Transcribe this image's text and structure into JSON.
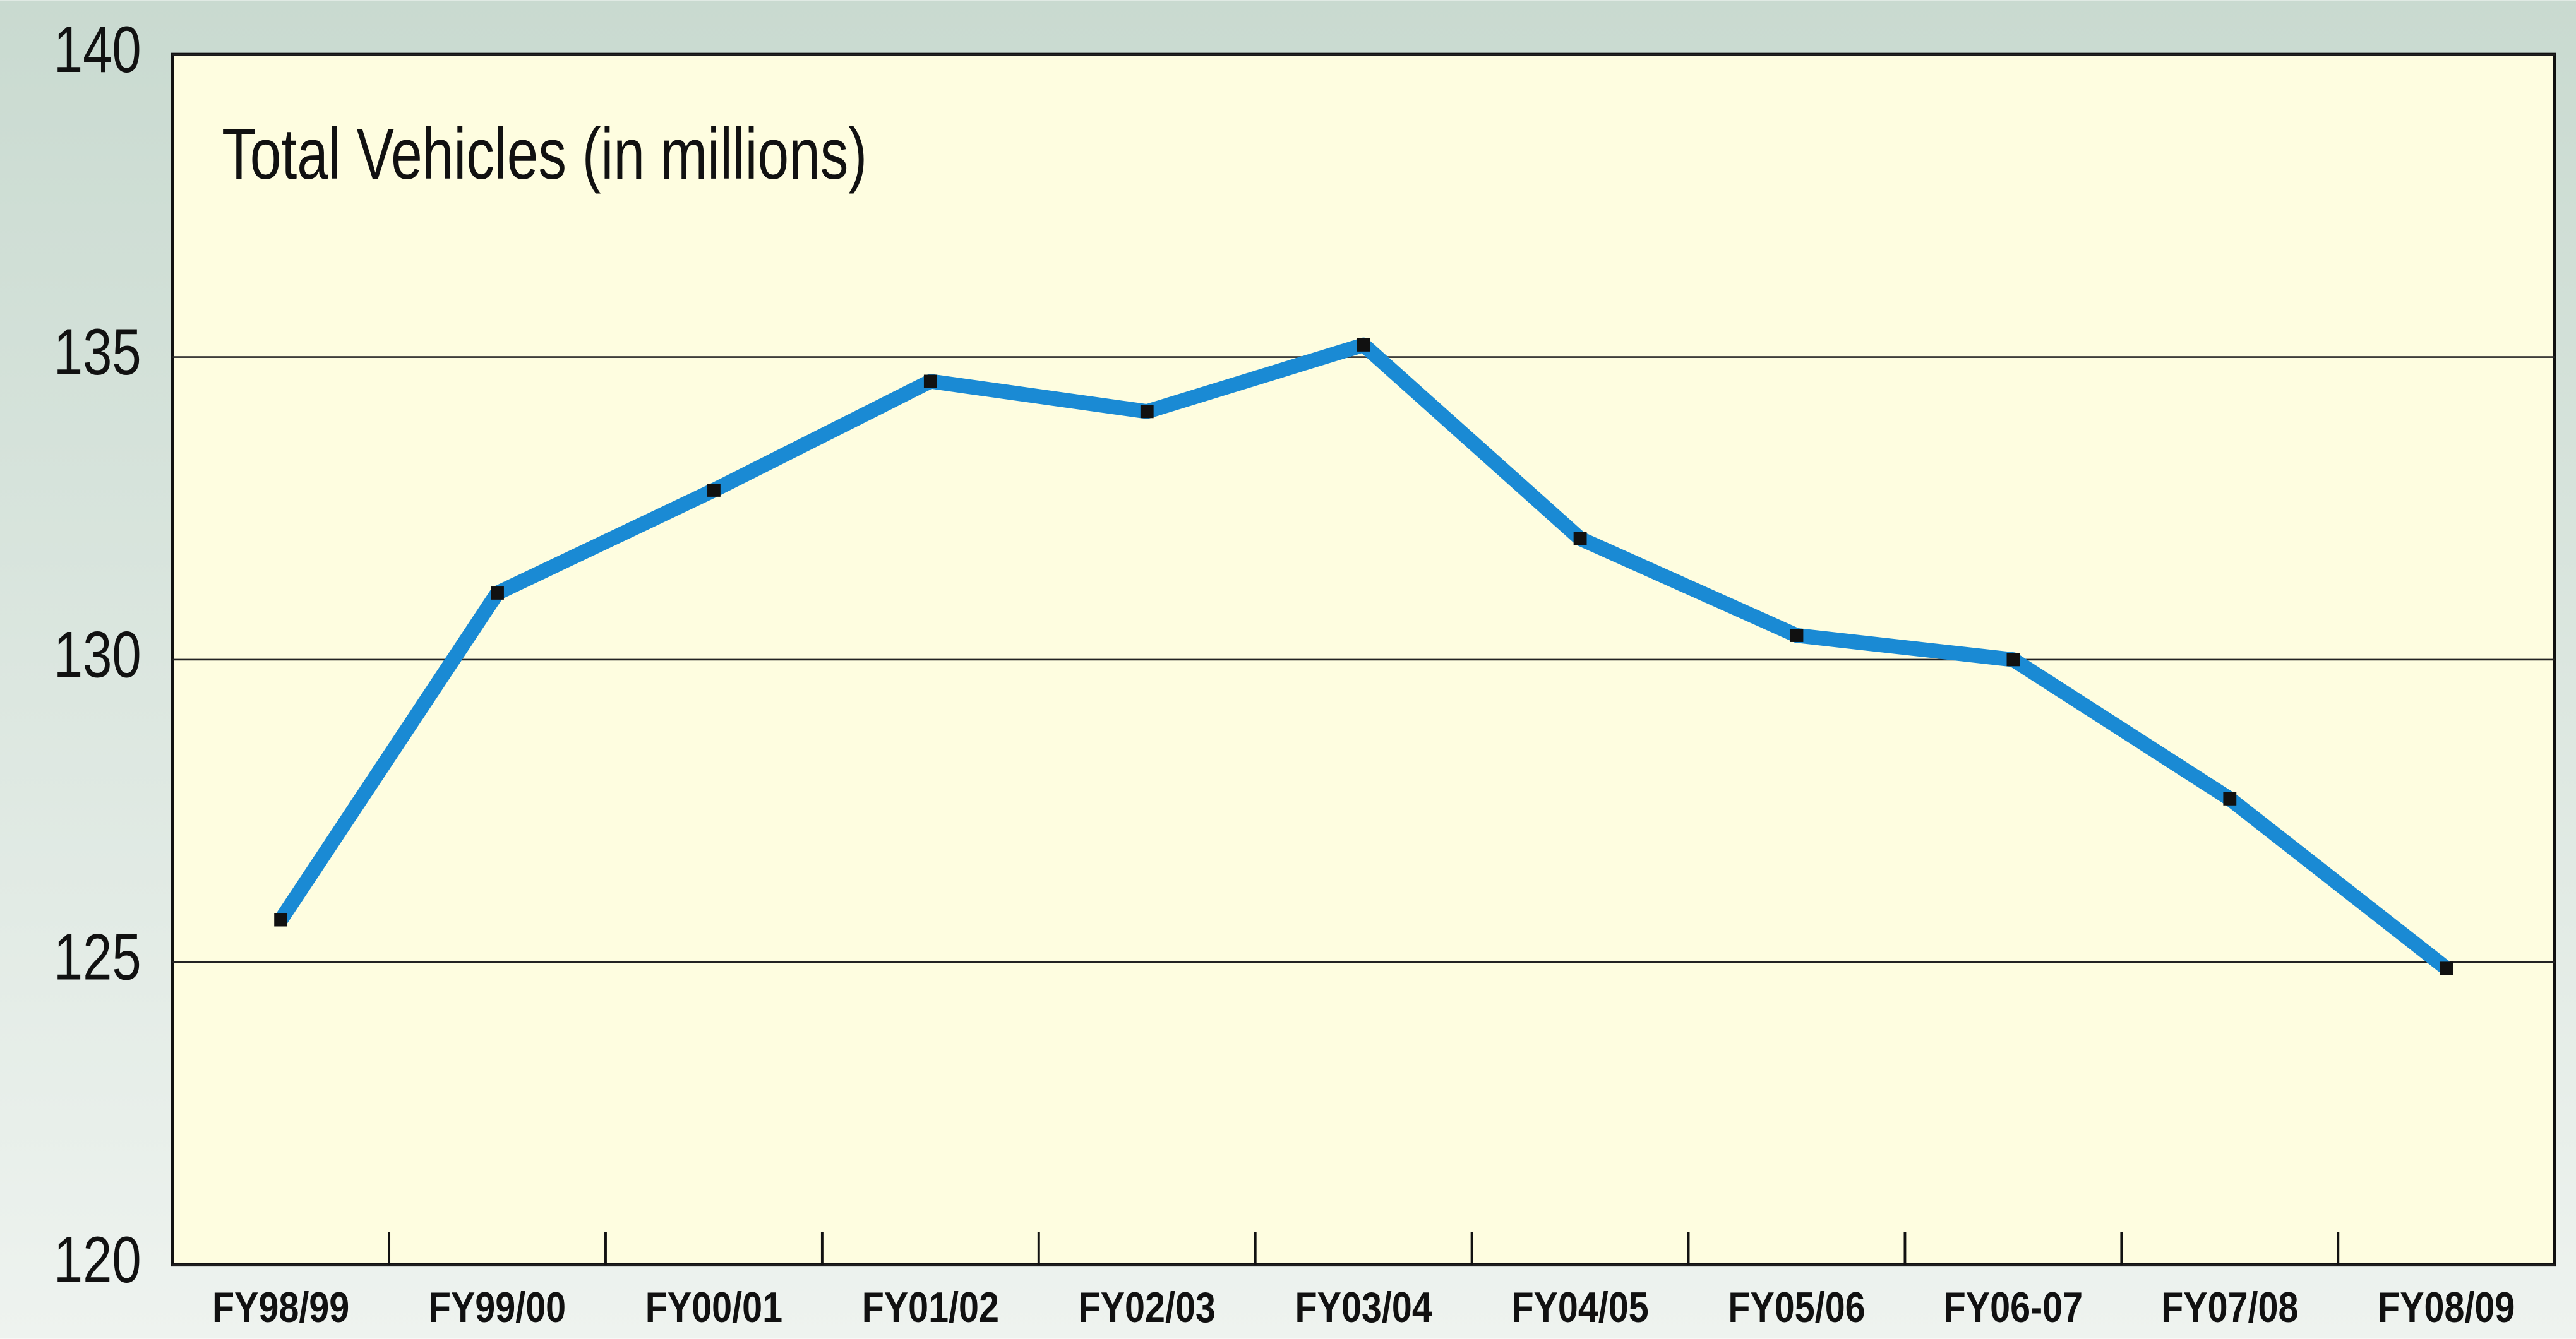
{
  "chart_data": {
    "type": "line",
    "title": "Total Vehicles (in millions)",
    "categories": [
      "FY98/99",
      "FY99/00",
      "FY00/01",
      "FY01/02",
      "FY02/03",
      "FY03/04",
      "FY04/05",
      "FY05/06",
      "FY06-07",
      "FY07/08",
      "FY08/09"
    ],
    "series": [
      {
        "name": "Total Vehicles",
        "color": "#1a8ad4",
        "values": [
          125.7,
          131.1,
          132.8,
          134.6,
          134.1,
          135.2,
          132.0,
          130.4,
          130.0,
          127.7,
          124.9
        ]
      }
    ],
    "ylim": [
      120,
      140
    ],
    "yticks": [
      120,
      125,
      130,
      135,
      140
    ],
    "grid": true
  }
}
